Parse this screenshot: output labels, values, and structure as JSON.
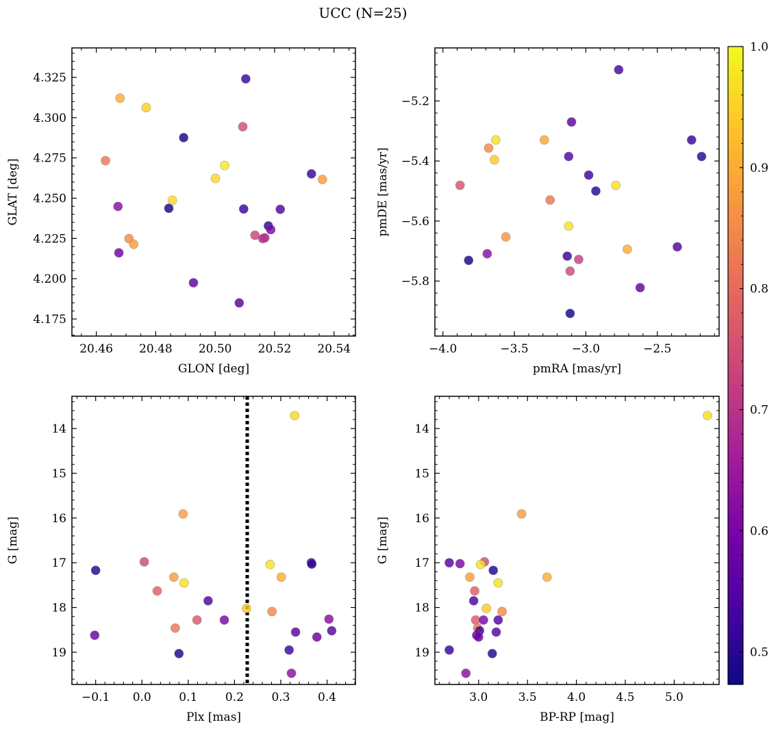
{
  "figure": {
    "suptitle": "UCC (N=25)"
  },
  "chart_data": [
    {
      "type": "scatter",
      "xlabel": "GLON [deg]",
      "ylabel": "GLAT [deg]",
      "xlim": [
        20.4518,
        20.5472
      ],
      "ylim": [
        4.1644,
        4.3433
      ],
      "y_inverted": false,
      "xticks": [
        20.46,
        20.48,
        20.5,
        20.52,
        20.54
      ],
      "xtick_labels": [
        "20.46",
        "20.48",
        "20.50",
        "20.52",
        "20.54"
      ],
      "yticks": [
        4.175,
        4.2,
        4.225,
        4.25,
        4.275,
        4.3,
        4.325
      ],
      "ytick_labels": [
        "4.175",
        "4.200",
        "4.225",
        "4.250",
        "4.275",
        "4.300",
        "4.325"
      ],
      "grid": false,
      "points": [
        {
          "x": 20.5103,
          "y": 4.3241,
          "c": 0.52
        },
        {
          "x": 20.468,
          "y": 4.3121,
          "c": 0.9
        },
        {
          "x": 20.4768,
          "y": 4.3063,
          "c": 0.95
        },
        {
          "x": 20.5093,
          "y": 4.2944,
          "c": 0.75
        },
        {
          "x": 20.4894,
          "y": 4.2876,
          "c": 0.48
        },
        {
          "x": 20.4631,
          "y": 4.2733,
          "c": 0.82
        },
        {
          "x": 20.5032,
          "y": 4.2703,
          "c": 0.98
        },
        {
          "x": 20.5001,
          "y": 4.2623,
          "c": 0.96
        },
        {
          "x": 20.5324,
          "y": 4.2651,
          "c": 0.52
        },
        {
          "x": 20.5361,
          "y": 4.2616,
          "c": 0.88
        },
        {
          "x": 20.4856,
          "y": 4.2487,
          "c": 0.96
        },
        {
          "x": 20.4673,
          "y": 4.2449,
          "c": 0.62
        },
        {
          "x": 20.4844,
          "y": 4.2437,
          "c": 0.48
        },
        {
          "x": 20.5096,
          "y": 4.2433,
          "c": 0.52
        },
        {
          "x": 20.5219,
          "y": 4.2431,
          "c": 0.55
        },
        {
          "x": 20.5179,
          "y": 4.2328,
          "c": 0.5
        },
        {
          "x": 20.5187,
          "y": 4.2305,
          "c": 0.6
        },
        {
          "x": 20.5134,
          "y": 4.227,
          "c": 0.73
        },
        {
          "x": 20.5167,
          "y": 4.2254,
          "c": 0.66
        },
        {
          "x": 20.471,
          "y": 4.2249,
          "c": 0.85
        },
        {
          "x": 20.516,
          "y": 4.2249,
          "c": 0.7
        },
        {
          "x": 20.4726,
          "y": 4.2214,
          "c": 0.88
        },
        {
          "x": 20.4676,
          "y": 4.2161,
          "c": 0.58
        },
        {
          "x": 20.4927,
          "y": 4.1975,
          "c": 0.56
        },
        {
          "x": 20.5081,
          "y": 4.185,
          "c": 0.55
        }
      ]
    },
    {
      "type": "scatter",
      "xlabel": "pmRA [mas/yr]",
      "ylabel": "pmDE [mas/yr]",
      "xlim": [
        -4.0561,
        -2.0675
      ],
      "ylim": [
        -5.9833,
        -5.0233
      ],
      "y_inverted": false,
      "xticks": [
        -4.0,
        -3.5,
        -3.0,
        -2.5
      ],
      "xtick_labels": [
        "−4.0",
        "−3.5",
        "−3.0",
        "−2.5"
      ],
      "yticks": [
        -5.8,
        -5.6,
        -5.4,
        -5.2
      ],
      "ytick_labels": [
        "−5.8",
        "−5.6",
        "−5.4",
        "−5.2"
      ],
      "grid": false,
      "points": [
        {
          "x": -2.77,
          "y": -5.096,
          "c": 0.53
        },
        {
          "x": -3.1,
          "y": -5.27,
          "c": 0.56
        },
        {
          "x": -3.63,
          "y": -5.33,
          "c": 0.97
        },
        {
          "x": -3.29,
          "y": -5.33,
          "c": 0.89
        },
        {
          "x": -3.68,
          "y": -5.357,
          "c": 0.85
        },
        {
          "x": -2.26,
          "y": -5.33,
          "c": 0.52
        },
        {
          "x": -2.19,
          "y": -5.385,
          "c": 0.5
        },
        {
          "x": -3.12,
          "y": -5.385,
          "c": 0.55
        },
        {
          "x": -3.64,
          "y": -5.396,
          "c": 0.94
        },
        {
          "x": -2.98,
          "y": -5.447,
          "c": 0.52
        },
        {
          "x": -3.88,
          "y": -5.481,
          "c": 0.76
        },
        {
          "x": -2.79,
          "y": -5.481,
          "c": 0.97
        },
        {
          "x": -2.93,
          "y": -5.5,
          "c": 0.5
        },
        {
          "x": -3.25,
          "y": -5.53,
          "c": 0.82
        },
        {
          "x": -3.12,
          "y": -5.617,
          "c": 0.97
        },
        {
          "x": -3.56,
          "y": -5.653,
          "c": 0.87
        },
        {
          "x": -2.36,
          "y": -5.686,
          "c": 0.55
        },
        {
          "x": -2.71,
          "y": -5.694,
          "c": 0.9
        },
        {
          "x": -3.69,
          "y": -5.709,
          "c": 0.62
        },
        {
          "x": -3.13,
          "y": -5.717,
          "c": 0.52
        },
        {
          "x": -3.82,
          "y": -5.731,
          "c": 0.48
        },
        {
          "x": -3.05,
          "y": -5.728,
          "c": 0.72
        },
        {
          "x": -3.11,
          "y": -5.767,
          "c": 0.74
        },
        {
          "x": -2.62,
          "y": -5.822,
          "c": 0.56
        },
        {
          "x": -3.11,
          "y": -5.908,
          "c": 0.47
        }
      ]
    },
    {
      "type": "scatter",
      "xlabel": "Plx [mas]",
      "ylabel": "G [mag]",
      "xlim": [
        -0.1513,
        0.4613
      ],
      "ylim": [
        13.28,
        19.72
      ],
      "y_inverted": true,
      "xticks": [
        -0.1,
        0.0,
        0.1,
        0.2,
        0.3,
        0.4
      ],
      "xtick_labels": [
        "−0.1",
        "0.0",
        "0.1",
        "0.2",
        "0.3",
        "0.4"
      ],
      "yticks": [
        14,
        15,
        16,
        17,
        18,
        19
      ],
      "ytick_labels": [
        "14",
        "15",
        "16",
        "17",
        "18",
        "19"
      ],
      "grid": false,
      "vline": {
        "x": 0.2275,
        "style": "dotted"
      },
      "points": [
        {
          "x": 0.33,
          "y": 13.71,
          "c": 0.96
        },
        {
          "x": 0.089,
          "y": 15.91,
          "c": 0.88
        },
        {
          "x": 0.005,
          "y": 16.98,
          "c": 0.74
        },
        {
          "x": 0.366,
          "y": 17.0,
          "c": 0.48
        },
        {
          "x": 0.367,
          "y": 17.03,
          "c": 0.52
        },
        {
          "x": 0.277,
          "y": 17.04,
          "c": 0.97
        },
        {
          "x": -0.1,
          "y": 17.17,
          "c": 0.49
        },
        {
          "x": 0.069,
          "y": 17.32,
          "c": 0.88
        },
        {
          "x": 0.301,
          "y": 17.32,
          "c": 0.9
        },
        {
          "x": 0.091,
          "y": 17.45,
          "c": 0.97
        },
        {
          "x": 0.033,
          "y": 17.63,
          "c": 0.78
        },
        {
          "x": 0.143,
          "y": 17.85,
          "c": 0.54
        },
        {
          "x": 0.226,
          "y": 18.02,
          "c": 0.94
        },
        {
          "x": 0.281,
          "y": 18.09,
          "c": 0.85
        },
        {
          "x": 0.119,
          "y": 18.28,
          "c": 0.77
        },
        {
          "x": 0.178,
          "y": 18.28,
          "c": 0.6
        },
        {
          "x": 0.404,
          "y": 18.26,
          "c": 0.62
        },
        {
          "x": 0.072,
          "y": 18.46,
          "c": 0.82
        },
        {
          "x": 0.41,
          "y": 18.52,
          "c": 0.55
        },
        {
          "x": 0.332,
          "y": 18.55,
          "c": 0.55
        },
        {
          "x": 0.378,
          "y": 18.66,
          "c": 0.58
        },
        {
          "x": -0.102,
          "y": 18.62,
          "c": 0.58
        },
        {
          "x": 0.318,
          "y": 18.95,
          "c": 0.52
        },
        {
          "x": 0.08,
          "y": 19.03,
          "c": 0.49
        },
        {
          "x": 0.323,
          "y": 19.47,
          "c": 0.62
        }
      ]
    },
    {
      "type": "scatter",
      "xlabel": "BP-RP [mag]",
      "ylabel": "G [mag]",
      "xlim": [
        2.553,
        5.459
      ],
      "ylim": [
        13.28,
        19.72
      ],
      "y_inverted": true,
      "xticks": [
        3.0,
        3.5,
        4.0,
        4.5,
        5.0
      ],
      "xtick_labels": [
        "3.0",
        "3.5",
        "4.0",
        "4.5",
        "5.0"
      ],
      "yticks": [
        14,
        15,
        16,
        17,
        18,
        19
      ],
      "ytick_labels": [
        "14",
        "15",
        "16",
        "17",
        "18",
        "19"
      ],
      "grid": false,
      "points": [
        {
          "x": 5.34,
          "y": 13.71,
          "c": 0.96
        },
        {
          "x": 3.44,
          "y": 15.91,
          "c": 0.88
        },
        {
          "x": 2.7,
          "y": 17.0,
          "c": 0.55
        },
        {
          "x": 2.81,
          "y": 17.02,
          "c": 0.6
        },
        {
          "x": 3.06,
          "y": 16.98,
          "c": 0.74
        },
        {
          "x": 3.02,
          "y": 17.04,
          "c": 0.97
        },
        {
          "x": 3.15,
          "y": 17.17,
          "c": 0.49
        },
        {
          "x": 2.91,
          "y": 17.32,
          "c": 0.88
        },
        {
          "x": 3.7,
          "y": 17.32,
          "c": 0.9
        },
        {
          "x": 3.2,
          "y": 17.45,
          "c": 0.97
        },
        {
          "x": 2.96,
          "y": 17.63,
          "c": 0.78
        },
        {
          "x": 2.95,
          "y": 17.85,
          "c": 0.54
        },
        {
          "x": 3.08,
          "y": 18.02,
          "c": 0.94
        },
        {
          "x": 3.24,
          "y": 18.09,
          "c": 0.85
        },
        {
          "x": 2.97,
          "y": 18.28,
          "c": 0.77
        },
        {
          "x": 3.05,
          "y": 18.28,
          "c": 0.6
        },
        {
          "x": 3.2,
          "y": 18.28,
          "c": 0.55
        },
        {
          "x": 2.99,
          "y": 18.46,
          "c": 0.82
        },
        {
          "x": 3.01,
          "y": 18.52,
          "c": 0.52
        },
        {
          "x": 3.18,
          "y": 18.55,
          "c": 0.55
        },
        {
          "x": 2.98,
          "y": 18.62,
          "c": 0.58
        },
        {
          "x": 3.0,
          "y": 18.66,
          "c": 0.58
        },
        {
          "x": 2.7,
          "y": 18.95,
          "c": 0.52
        },
        {
          "x": 3.14,
          "y": 19.03,
          "c": 0.49
        },
        {
          "x": 2.87,
          "y": 19.47,
          "c": 0.62
        }
      ]
    }
  ],
  "colorbar": {
    "cmap": "plasma",
    "range": [
      0.473,
      1.0
    ],
    "ticks": [
      0.5,
      0.6,
      0.7,
      0.8,
      0.9,
      1.0
    ],
    "tick_labels": [
      "0.5",
      "0.6",
      "0.7",
      "0.8",
      "0.9",
      "1.0"
    ],
    "stops": [
      "#0d0887",
      "#46039f",
      "#7201a8",
      "#9c179e",
      "#bd3786",
      "#d8576b",
      "#ed7953",
      "#fb9f3a",
      "#fdca26",
      "#f0f921"
    ]
  }
}
